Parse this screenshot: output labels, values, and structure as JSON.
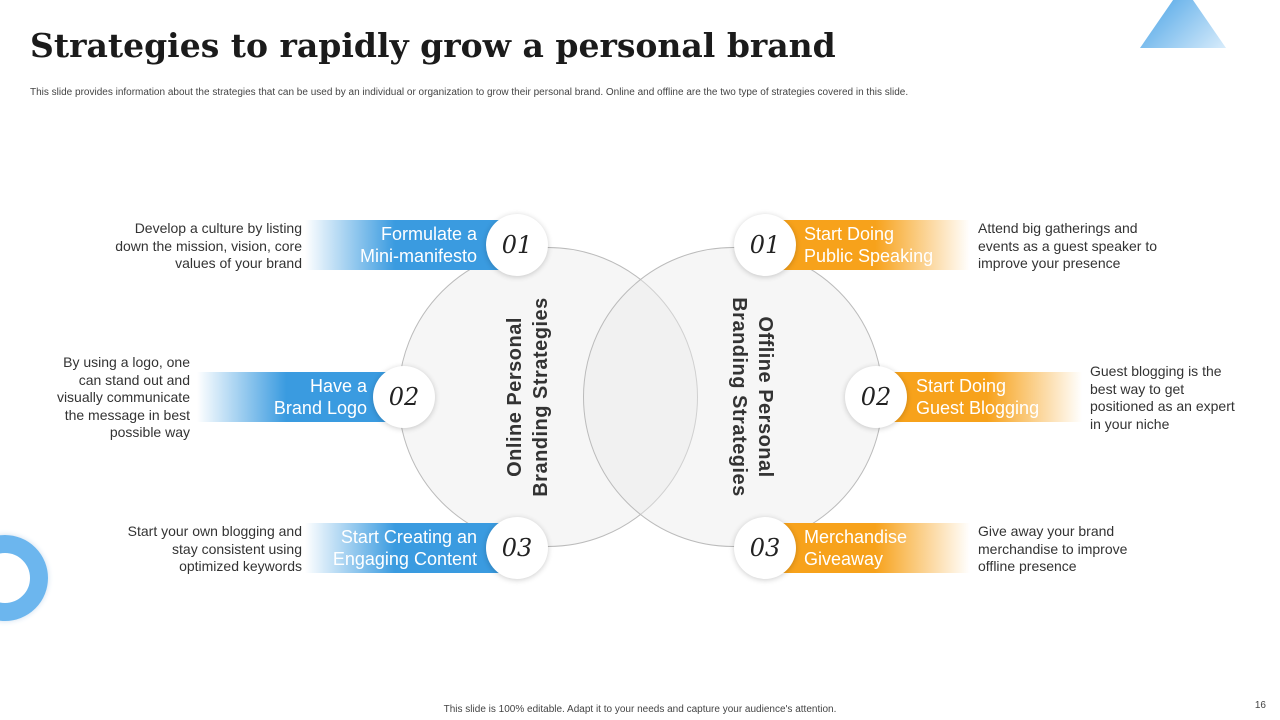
{
  "title": "Strategies to rapidly grow a personal brand",
  "subtitle": "This slide provides information about the strategies that can be used by an individual or organization to grow their personal brand. Online and offline are the two type of strategies covered in this slide.",
  "online": {
    "heading_1": "Online Personal",
    "heading_2": "Branding Strategies",
    "color": "#3a9be0",
    "items": [
      {
        "num": "01",
        "l1": "Formulate a",
        "l2": "Mini-manifesto",
        "desc": "Develop a culture by listing down the mission, vision, core values of your brand"
      },
      {
        "num": "02",
        "l1": "Have a",
        "l2": "Brand Logo",
        "desc": "By using a logo, one can stand out and visually communicate the message in best possible way"
      },
      {
        "num": "03",
        "l1": "Start Creating an",
        "l2": "Engaging Content",
        "desc": "Start your own blogging and stay consistent using optimized keywords"
      }
    ]
  },
  "offline": {
    "heading_1": "Offline Personal",
    "heading_2": "Branding Strategies",
    "color": "#f7a21b",
    "items": [
      {
        "num": "01",
        "l1": "Start Doing",
        "l2": "Public Speaking",
        "desc": "Attend big gatherings and events as a guest speaker to improve your presence"
      },
      {
        "num": "02",
        "l1": "Start Doing",
        "l2": "Guest Blogging",
        "desc": "Guest blogging is the best way to get positioned as an expert in your niche"
      },
      {
        "num": "03",
        "l1": "Merchandise",
        "l2": "Giveaway",
        "desc": "Give away your brand merchandise to improve offline presence"
      }
    ]
  },
  "footer": "This slide is 100% editable. Adapt it to your needs and capture your audience's attention.",
  "page_number": "16"
}
